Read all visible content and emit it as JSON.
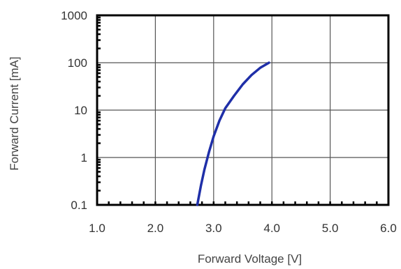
{
  "chart_data": {
    "type": "line",
    "title": "",
    "xlabel": "Forward Voltage [V]",
    "ylabel": "Forward Current [mA]",
    "xlim": [
      1.0,
      6.0
    ],
    "ylim": [
      0.1,
      1000
    ],
    "yscale": "log",
    "grid": true,
    "legend": "none",
    "x_ticks": [
      "1.0",
      "2.0",
      "3.0",
      "4.0",
      "5.0",
      "6.0"
    ],
    "y_ticks": [
      "0.1",
      "1",
      "10",
      "100",
      "1000"
    ],
    "series": [
      {
        "color": "#1f2fa8",
        "x": [
          2.72,
          2.78,
          2.84,
          2.92,
          3.0,
          3.1,
          3.2,
          3.35,
          3.5,
          3.65,
          3.8,
          3.95
        ],
        "y": [
          0.1,
          0.25,
          0.55,
          1.3,
          2.8,
          6.0,
          11.0,
          20.0,
          35.0,
          55.0,
          78.0,
          100.0
        ]
      }
    ]
  }
}
